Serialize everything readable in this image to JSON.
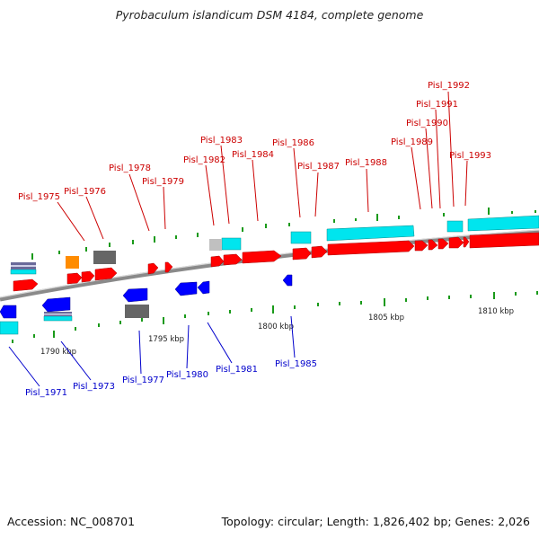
{
  "title": "Pyrobaculum islandicum DSM 4184, complete genome",
  "footer": {
    "accession": "Accession: NC_008701",
    "info": "Topology: circular; Length: 1,826,402 bp; Genes: 2,026"
  },
  "colors": {
    "forward_cds": "#ff0000",
    "reverse_cds": "#0000ff",
    "rna": "#00e5ee",
    "pseudo": "#666666",
    "other": "#ff8c00",
    "backbone": "#888888",
    "gc_tick": "#00aa00",
    "label_forward": "#cc0000",
    "label_reverse": "#0000cc"
  },
  "scale_ticks": [
    "1790 kbp",
    "1795 kbp",
    "1800 kbp",
    "1805 kbp",
    "1810 kbp"
  ],
  "genes_top": [
    "Pisl_1975",
    "Pisl_1976",
    "Pisl_1978",
    "Pisl_1979",
    "Pisl_1982",
    "Pisl_1983",
    "Pisl_1984",
    "Pisl_1986",
    "Pisl_1987",
    "Pisl_1988",
    "Pisl_1989",
    "Pisl_1990",
    "Pisl_1991",
    "Pisl_1992",
    "Pisl_1993"
  ],
  "genes_bottom": [
    "Pisl_1971",
    "Pisl_1973",
    "Pisl_1977",
    "Pisl_1980",
    "Pisl_1981",
    "Pisl_1985"
  ]
}
